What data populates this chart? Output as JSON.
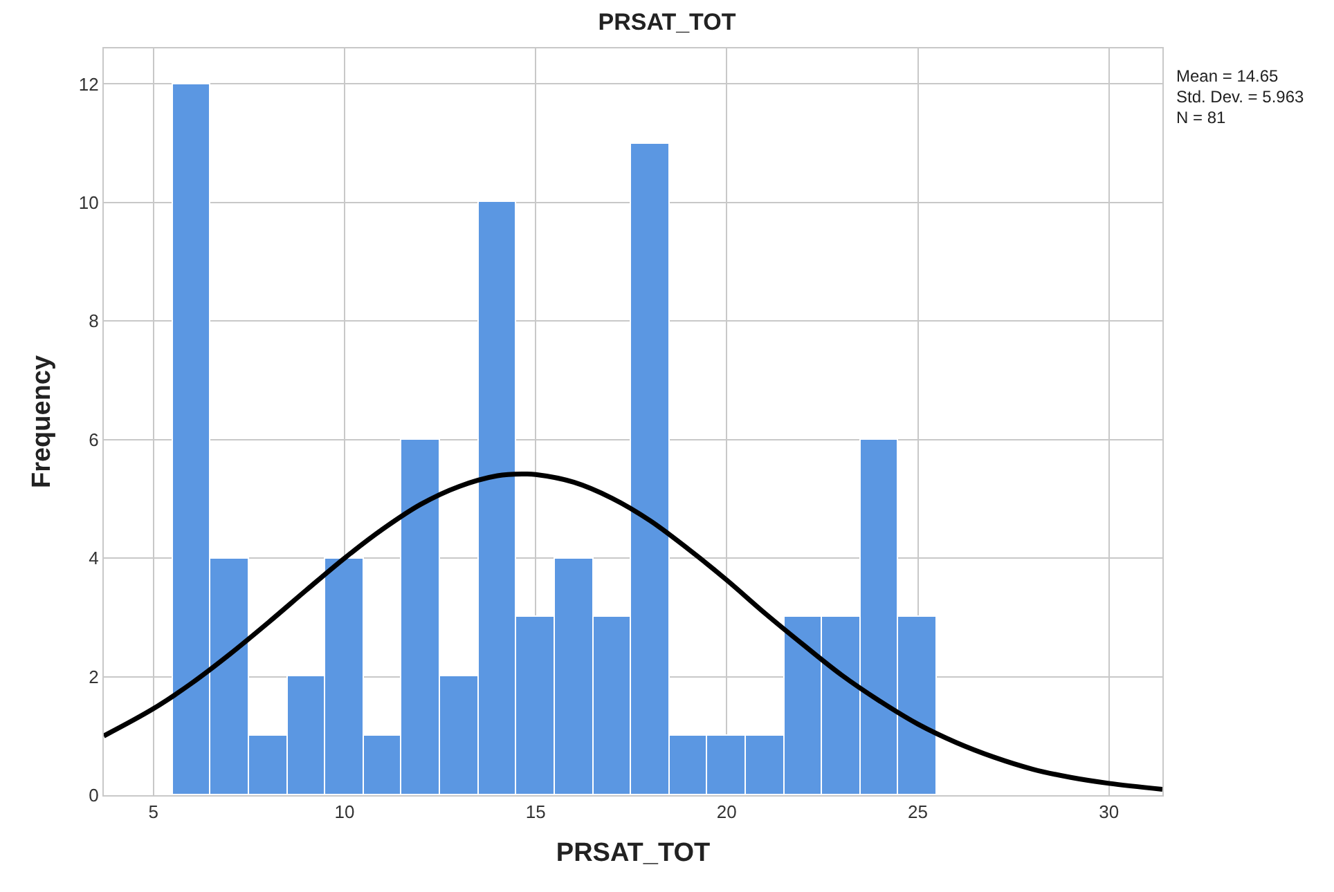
{
  "chart_data": {
    "type": "histogram",
    "title": "PRSAT_TOT",
    "xlabel": "PRSAT_TOT",
    "ylabel": "Frequency",
    "annotations": [
      "Mean = 14.65",
      "Std. Dev. = 5.963",
      "N = 81"
    ],
    "series": [
      {
        "color": "#5b97e2",
        "bins": [
          5.5,
          6.5,
          7.5,
          8.5,
          9.5,
          10.5,
          11.5,
          12.5,
          13.5,
          14.5,
          15.5,
          16.5,
          17.5,
          18.5,
          19.5,
          20.5,
          21.5,
          22.5,
          23.5,
          24.5,
          25.5
        ],
        "values": [
          12,
          4,
          1,
          2,
          4,
          1,
          6,
          2,
          10,
          3,
          4,
          3,
          11,
          1,
          1,
          1,
          3,
          3,
          6,
          3
        ]
      },
      {
        "type": "line",
        "color": "#000000",
        "x": [
          3.7,
          5,
          6,
          7,
          8,
          9,
          10,
          11,
          12,
          13,
          14,
          14.65,
          15,
          16,
          17,
          18,
          19,
          20,
          21,
          22,
          23,
          24,
          25,
          26,
          27,
          28,
          29,
          30,
          31.4
        ],
        "values": [
          1.0,
          1.46,
          1.89,
          2.38,
          2.91,
          3.46,
          4.0,
          4.49,
          4.91,
          5.21,
          5.39,
          5.42,
          5.41,
          5.28,
          5.01,
          4.63,
          4.15,
          3.63,
          3.07,
          2.54,
          2.03,
          1.59,
          1.2,
          0.89,
          0.64,
          0.44,
          0.3,
          0.2,
          0.1
        ]
      }
    ],
    "xlim": [
      3.7,
      31.4
    ],
    "xticks": [
      5,
      10,
      15,
      20,
      25,
      30
    ],
    "ylim": [
      0,
      12.6
    ],
    "yticks": [
      0,
      2,
      4,
      6,
      8,
      10,
      12
    ],
    "grid": true,
    "marker": "none",
    "line_style": "solid"
  }
}
